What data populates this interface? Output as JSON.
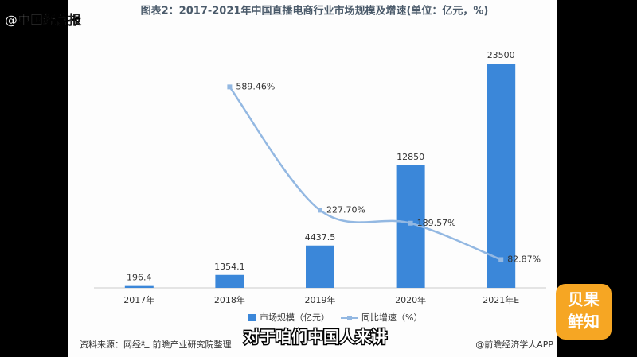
{
  "chart_data": {
    "type": "bar_line",
    "title": "图表2：2017-2021年中国直播电商行业市场规模及增速(单位：亿元，%)",
    "categories": [
      "2017年",
      "2018年",
      "2019年",
      "2020年",
      "2021年E"
    ],
    "series": [
      {
        "name": "市场规模（亿元）",
        "color": "#3b87d9",
        "type": "bar",
        "values": [
          196.4,
          1354.1,
          4437.5,
          12850,
          23500
        ]
      },
      {
        "name": "同比增速（%）",
        "color": "#93b8e2",
        "type": "line",
        "axis": "y2",
        "values": [
          null,
          589.46,
          227.7,
          189.57,
          82.87
        ],
        "value_labels": [
          null,
          "589.46%",
          "227.70%",
          "189.57%",
          "82.87%"
        ]
      }
    ],
    "ylim": [
      0,
      25000
    ],
    "y2lim": [
      0,
      700
    ],
    "legend": "bottom"
  },
  "source": "资料来源：网经社 前瞻产业研究院整理",
  "credit": "@前瞻经济学人APP",
  "watermark": "@中国经营报",
  "subtitle": "对于咱们中国人来讲",
  "logo": [
    "贝果",
    "鲜知"
  ]
}
